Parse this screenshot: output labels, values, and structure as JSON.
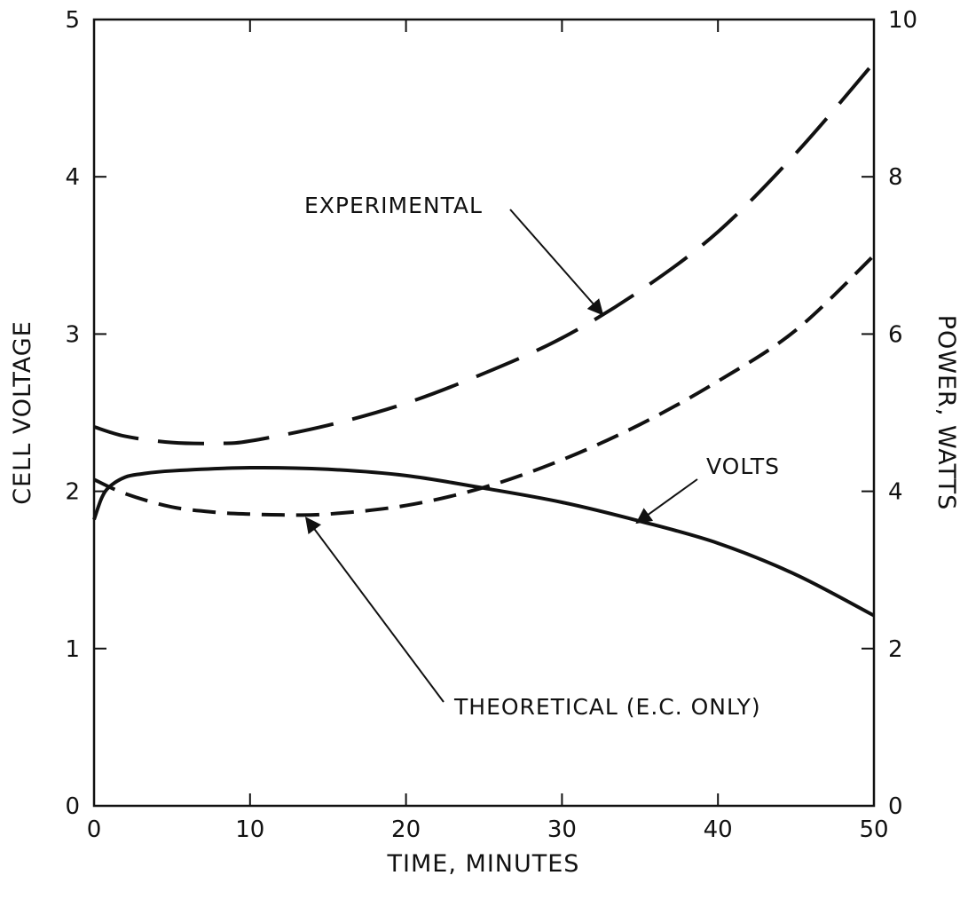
{
  "chart_data": {
    "type": "line",
    "title": "",
    "xlabel": "TIME, MINUTES",
    "ylabel_left": "CELL VOLTAGE",
    "ylabel_right": "POWER, WATTS",
    "xlim": [
      0,
      50
    ],
    "ylim_left": [
      0,
      5
    ],
    "ylim_right": [
      0,
      10
    ],
    "x_ticks": [
      0,
      10,
      20,
      30,
      40,
      50
    ],
    "y_left_ticks": [
      0,
      1,
      2,
      3,
      4,
      5
    ],
    "y_right_ticks": [
      0,
      2,
      4,
      6,
      8,
      10
    ],
    "grid": false,
    "legend": "none",
    "series": [
      {
        "name": "VOLTS",
        "axis": "left",
        "style": "solid",
        "x": [
          0,
          0.5,
          1,
          2,
          3,
          5,
          10,
          15,
          20,
          25,
          30,
          35,
          40,
          45,
          50
        ],
        "y": [
          1.82,
          1.96,
          2.03,
          2.09,
          2.11,
          2.13,
          2.15,
          2.14,
          2.1,
          2.02,
          1.93,
          1.81,
          1.67,
          1.47,
          1.21
        ]
      },
      {
        "name": "EXPERIMENTAL",
        "axis": "right",
        "style": "long-dash",
        "x": [
          0,
          2,
          5,
          8,
          10,
          15,
          20,
          25,
          30,
          35,
          40,
          45,
          50
        ],
        "y": [
          4.82,
          4.7,
          4.62,
          4.61,
          4.64,
          4.84,
          5.12,
          5.5,
          5.95,
          6.55,
          7.3,
          8.3,
          9.45
        ]
      },
      {
        "name": "THEORETICAL (E.C. ONLY)",
        "axis": "right",
        "style": "short-dash",
        "x": [
          0,
          2,
          5,
          8,
          10,
          12,
          15,
          20,
          25,
          30,
          35,
          40,
          45,
          50
        ],
        "y": [
          4.15,
          3.97,
          3.8,
          3.73,
          3.71,
          3.7,
          3.71,
          3.82,
          4.05,
          4.4,
          4.85,
          5.4,
          6.05,
          7.0
        ]
      }
    ],
    "annotations": [
      {
        "text": "EXPERIMENTAL",
        "target_series": "EXPERIMENTAL",
        "target_x": 32.6,
        "target_y": 6.25
      },
      {
        "text": "VOLTS",
        "target_series": "VOLTS",
        "target_x": 34.8,
        "target_y": 1.8
      },
      {
        "text": "THEORETICAL (E.C. ONLY)",
        "target_series": "THEORETICAL (E.C. ONLY)",
        "target_x": 13.6,
        "target_y": 3.66
      }
    ]
  }
}
